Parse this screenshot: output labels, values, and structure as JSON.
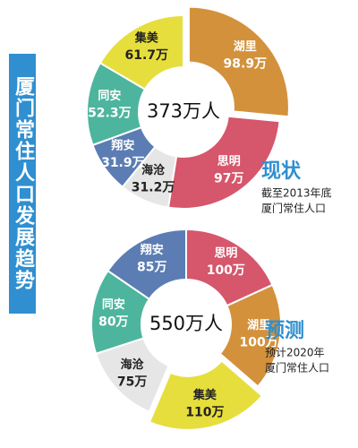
{
  "title": "厦门常住人口发展趋势",
  "chart_data": [
    {
      "type": "pie",
      "title": "现状",
      "subtitle": [
        "截至2013年底",
        "厦门常住人口"
      ],
      "center_label": "373万人",
      "categories": [
        "湖里",
        "思明",
        "海沧",
        "翔安",
        "同安",
        "集美"
      ],
      "values": [
        98.9,
        97,
        31.2,
        31.9,
        52.3,
        61.7
      ],
      "value_labels": [
        "98.9万",
        "97万",
        "31.2万",
        "31.9万",
        "52.3万",
        "61.7万"
      ],
      "colors": [
        "#d3913c",
        "#d6566b",
        "#e6e6e6",
        "#5b7db3",
        "#4db59d",
        "#e6de3c"
      ],
      "explode": 0
    },
    {
      "type": "pie",
      "title": "预测",
      "subtitle": [
        "预计2020年",
        "厦门常住人口"
      ],
      "center_label": "550万人",
      "categories": [
        "思明",
        "湖里",
        "集美",
        "海沧",
        "同安",
        "翔安"
      ],
      "values": [
        100,
        100,
        110,
        75,
        80,
        85
      ],
      "value_labels": [
        "100万",
        "100万",
        "110万",
        "75万",
        "80万",
        "85万"
      ],
      "colors": [
        "#d6566b",
        "#d3913c",
        "#e6de3c",
        "#e6e6e6",
        "#4db59d",
        "#5b7db3"
      ],
      "explode": 2
    }
  ]
}
